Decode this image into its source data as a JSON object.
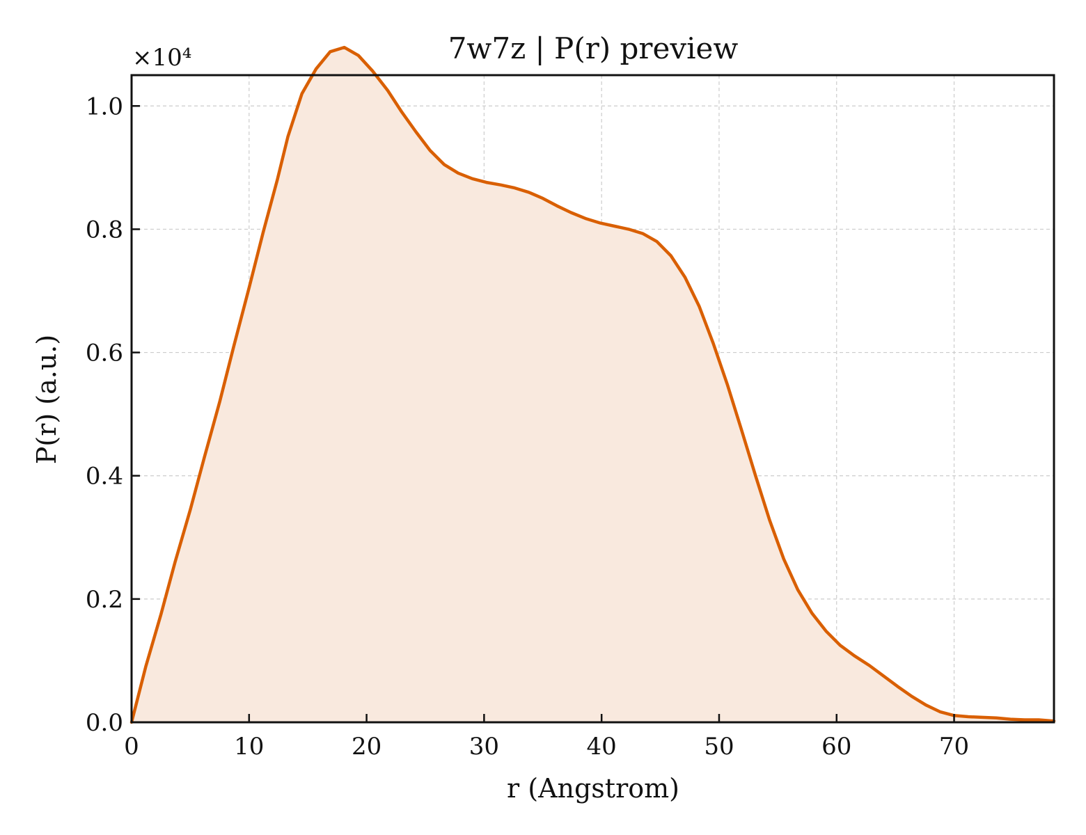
{
  "chart_data": {
    "type": "area",
    "title": "7w7z | P(r) preview",
    "xlabel": "r (Angstrom)",
    "ylabel": "P(r) (a.u.)",
    "y_offset_label": "×10⁴",
    "xlim": [
      0,
      78.5
    ],
    "ylim": [
      0,
      1.05
    ],
    "xticks": [
      0,
      10,
      20,
      30,
      40,
      50,
      60,
      70
    ],
    "xtick_labels": [
      "0",
      "10",
      "20",
      "30",
      "40",
      "50",
      "60",
      "70"
    ],
    "yticks": [
      0.0,
      0.2,
      0.4,
      0.6,
      0.8,
      1.0
    ],
    "ytick_labels": [
      "0.0",
      "0.2",
      "0.4",
      "0.6",
      "0.8",
      "1.0"
    ],
    "grid": true,
    "line_color": "#d95f02",
    "fill_color": "#f9e9de",
    "series": [
      {
        "x": [
          0,
          1.2,
          2.5,
          3.7,
          5,
          6.2,
          7.5,
          8.7,
          10,
          11.2,
          12.4,
          13.3,
          14.5,
          15.7,
          16.9,
          18.1,
          19.3,
          20.5,
          21.8,
          23,
          24.2,
          25.4,
          26.6,
          27.8,
          29,
          30.2,
          31.4,
          32.6,
          33.8,
          35,
          36.2,
          37.4,
          38.7,
          39.9,
          41.1,
          42.3,
          43.5,
          44.7,
          45.9,
          47.1,
          48.3,
          49.5,
          50.7,
          51.9,
          53.1,
          54.3,
          55.5,
          56.7,
          57.9,
          59.1,
          60.3,
          61.5,
          62.8,
          64,
          65.2,
          66.4,
          67.6,
          68.8,
          70,
          71.2,
          72.4,
          73.6,
          74.8,
          76,
          77.2,
          78.5
        ],
        "y": [
          0.0,
          0.09,
          0.175,
          0.26,
          0.345,
          0.43,
          0.52,
          0.61,
          0.705,
          0.795,
          0.88,
          0.95,
          1.02,
          1.06,
          1.088,
          1.095,
          1.082,
          1.057,
          1.025,
          0.99,
          0.958,
          0.928,
          0.905,
          0.891,
          0.882,
          0.876,
          0.872,
          0.867,
          0.86,
          0.85,
          0.838,
          0.827,
          0.817,
          0.81,
          0.805,
          0.8,
          0.793,
          0.78,
          0.757,
          0.722,
          0.675,
          0.615,
          0.548,
          0.475,
          0.4,
          0.328,
          0.265,
          0.215,
          0.177,
          0.148,
          0.125,
          0.108,
          0.092,
          0.075,
          0.058,
          0.042,
          0.028,
          0.017,
          0.011,
          0.009,
          0.008,
          0.007,
          0.005,
          0.004,
          0.004,
          0.002
        ]
      }
    ]
  }
}
